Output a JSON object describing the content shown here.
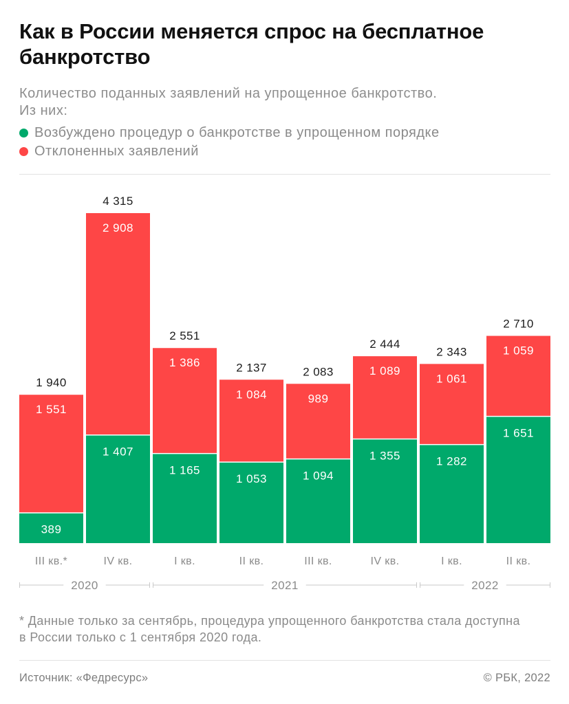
{
  "chart_data": {
    "type": "bar",
    "stacked": true,
    "title": "Как в России меняется спрос на бесплатное банкротство",
    "subtitle": [
      "Количество поданных заявлений на упрощенное банкротство.",
      "Из них:"
    ],
    "categories": [
      "III кв.*",
      "IV кв.",
      "I кв.",
      "II кв.",
      "III кв.",
      "IV кв.",
      "I кв.",
      "II кв."
    ],
    "series": [
      {
        "name": "Возбуждено процедур о банкротстве в упрощенном порядке",
        "color": "#00a96b",
        "values": [
          389,
          1407,
          1165,
          1053,
          1094,
          1355,
          1282,
          1651
        ]
      },
      {
        "name": "Отклоненных заявлений",
        "color": "#fe4646",
        "values": [
          1551,
          2908,
          1386,
          1084,
          989,
          1089,
          1061,
          1059
        ]
      }
    ],
    "totals": [
      1940,
      4315,
      2551,
      2137,
      2083,
      2444,
      2343,
      2710
    ],
    "groups": [
      {
        "label": "2020",
        "from": 0,
        "to": 1
      },
      {
        "label": "2021",
        "from": 2,
        "to": 5
      },
      {
        "label": "2022",
        "from": 6,
        "to": 7
      }
    ],
    "legend_position": "top-left",
    "grid": false
  },
  "footnote": {
    "line1": "* Данные только за сентябрь, процедура упрощенного банкротства стала доступна",
    "line2": "в России только с 1 сентября 2020 года."
  },
  "footer": {
    "source": "Источник: «Федресурс»",
    "copyright": "© РБК, 2022"
  }
}
